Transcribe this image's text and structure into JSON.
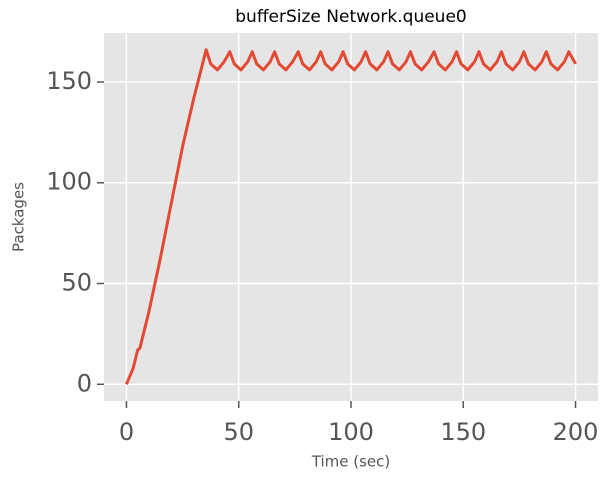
{
  "chart_data": {
    "type": "line",
    "title": "bufferSize Network.queue0",
    "x_label": "Time (sec)",
    "y_label": "Packages",
    "series": [
      {
        "name": "Network.queue0",
        "color": "#e24a33",
        "x": [
          0,
          3,
          5,
          6,
          10,
          15,
          20,
          25,
          30,
          35.5,
          37.5,
          40.5,
          43.5,
          46,
          48,
          51,
          54,
          56,
          58,
          61,
          64,
          66,
          68,
          71,
          74,
          76.5,
          78.5,
          81.5,
          84.5,
          86.5,
          88.5,
          91.5,
          94.5,
          96.5,
          98.5,
          101.5,
          104.5,
          106.5,
          108.5,
          111.5,
          114.5,
          116.5,
          118.5,
          121.5,
          124.5,
          126.5,
          128.5,
          131.5,
          134.5,
          137,
          139,
          142,
          145,
          147,
          149,
          152,
          155,
          157,
          159,
          162,
          165,
          167,
          169,
          172,
          175,
          177,
          179,
          182,
          185,
          187,
          189,
          192,
          195,
          197,
          199,
          200
        ],
        "values": [
          0,
          8,
          17,
          18,
          36,
          62,
          90,
          118,
          142,
          166,
          159,
          156,
          160,
          165,
          159,
          156,
          160,
          165,
          159,
          156,
          160,
          165,
          159,
          156,
          160,
          165,
          159,
          156,
          160,
          165,
          159,
          156,
          160,
          165,
          159,
          156,
          160,
          165,
          159,
          156,
          160,
          165,
          159,
          156,
          160,
          165,
          159,
          156,
          160,
          165,
          159,
          156,
          160,
          165,
          159,
          156,
          160,
          165,
          159,
          156,
          160,
          165,
          159,
          156,
          160,
          165,
          159,
          156,
          160,
          165,
          159,
          156,
          160,
          165,
          161,
          159
        ]
      }
    ],
    "xlim": [
      -10,
      210
    ],
    "ylim": [
      -8.3,
      174.3
    ],
    "xticks": [
      0,
      50,
      100,
      150,
      200
    ],
    "yticks": [
      0,
      50,
      100,
      150
    ],
    "grid": true
  }
}
